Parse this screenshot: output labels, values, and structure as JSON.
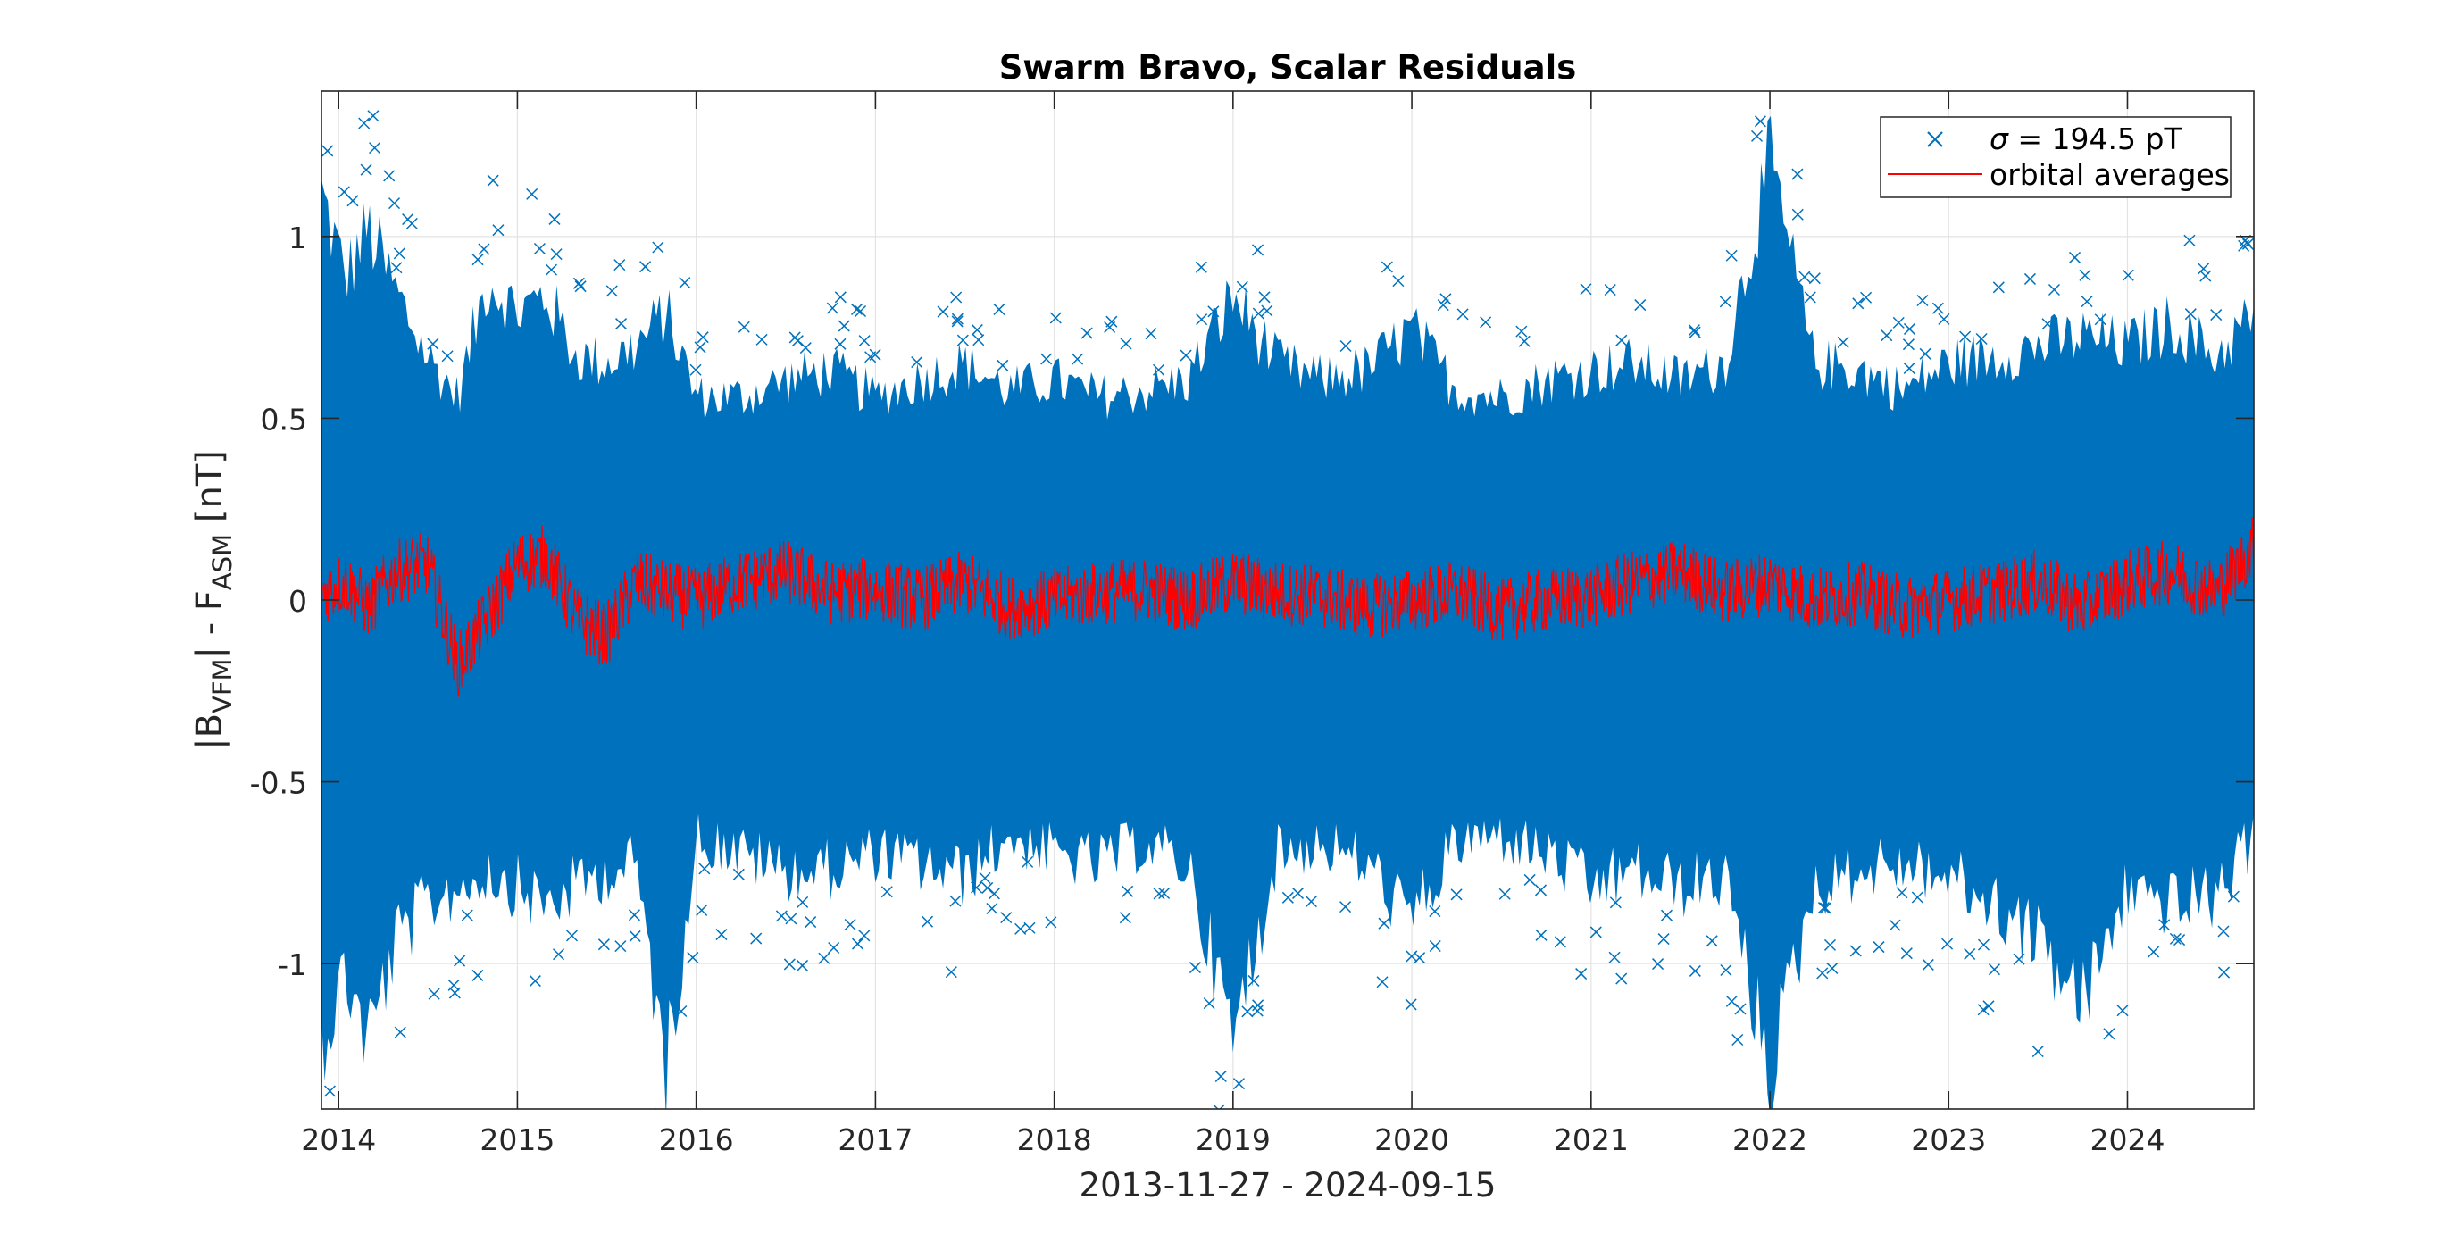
{
  "chart_data": {
    "type": "scatter",
    "title": "Swarm Bravo, Scalar Residuals",
    "xlabel": "2013-11-27 - 2024-09-15",
    "ylabel": {
      "prefix": "|B",
      "sub1": "VFM",
      "middle": "| - F",
      "sub2": "ASM",
      "suffix": " [nT]"
    },
    "xlim": [
      "2013-11-27",
      "2024-09-15"
    ],
    "ylim": [
      -1.4,
      1.4
    ],
    "yticks": [
      -1,
      -0.5,
      0,
      0.5,
      1
    ],
    "ytick_labels": [
      "-1",
      "-0.5",
      "0",
      "0.5",
      "1"
    ],
    "xticks": [
      "2014-01-01",
      "2015-01-01",
      "2016-01-01",
      "2017-01-01",
      "2018-01-01",
      "2019-01-01",
      "2020-01-01",
      "2021-01-01",
      "2022-01-01",
      "2023-01-01",
      "2024-01-01"
    ],
    "xtick_labels": [
      "2014",
      "2015",
      "2016",
      "2017",
      "2018",
      "2019",
      "2020",
      "2021",
      "2022",
      "2023",
      "2024"
    ],
    "grid": true,
    "legend_position": "top-right",
    "legend": [
      {
        "symbol": "σ",
        "label": " = 194.5 pT",
        "marker": "x",
        "color": "#0072BD"
      },
      {
        "label": "orbital averages",
        "marker": "line",
        "color": "#FF0000"
      }
    ],
    "series": [
      {
        "name": "σ = 194.5 pT",
        "kind": "residual-envelope",
        "color": "#0072BD",
        "x": [
          "2013-11-27",
          "2014-01-15",
          "2014-03-01",
          "2014-05-01",
          "2014-07-01",
          "2014-09-01",
          "2014-11-01",
          "2015-01-01",
          "2015-03-01",
          "2015-05-01",
          "2015-07-01",
          "2015-09-01",
          "2015-11-01",
          "2016-01-01",
          "2016-04-01",
          "2016-07-01",
          "2016-10-01",
          "2017-01-01",
          "2017-04-01",
          "2017-07-01",
          "2017-10-01",
          "2018-01-01",
          "2018-04-01",
          "2018-07-01",
          "2018-10-01",
          "2019-01-01",
          "2019-04-01",
          "2019-07-01",
          "2019-10-01",
          "2020-01-01",
          "2020-04-01",
          "2020-07-01",
          "2020-10-01",
          "2021-01-01",
          "2021-04-01",
          "2021-07-01",
          "2021-10-01",
          "2022-01-01",
          "2022-04-01",
          "2022-07-01",
          "2022-10-01",
          "2023-01-01",
          "2023-04-01",
          "2023-07-01",
          "2023-10-01",
          "2024-01-01",
          "2024-04-01",
          "2024-07-01",
          "2024-09-15"
        ],
        "upper": [
          1.2,
          0.95,
          1.1,
          0.9,
          0.72,
          0.6,
          0.95,
          0.85,
          0.9,
          0.72,
          0.7,
          0.75,
          0.85,
          0.6,
          0.6,
          0.65,
          0.68,
          0.6,
          0.65,
          0.7,
          0.62,
          0.65,
          0.6,
          0.62,
          0.65,
          0.9,
          0.7,
          0.65,
          0.68,
          0.8,
          0.62,
          0.6,
          0.65,
          0.68,
          0.7,
          0.65,
          0.7,
          1.3,
          0.7,
          0.68,
          0.62,
          0.7,
          0.72,
          0.75,
          0.78,
          0.75,
          0.82,
          0.72,
          0.85
        ],
        "lower": [
          -1.3,
          -1.1,
          -1.3,
          -1.0,
          -0.9,
          -0.85,
          -0.8,
          -0.85,
          -0.9,
          -0.85,
          -0.8,
          -0.78,
          -1.4,
          -0.7,
          -0.75,
          -0.8,
          -0.8,
          -0.75,
          -0.78,
          -0.82,
          -0.7,
          -0.75,
          -0.78,
          -0.72,
          -0.78,
          -1.3,
          -0.75,
          -0.72,
          -0.78,
          -0.95,
          -0.72,
          -0.7,
          -0.75,
          -0.85,
          -0.8,
          -0.85,
          -0.82,
          -1.4,
          -0.85,
          -0.8,
          -0.78,
          -0.82,
          -0.9,
          -1.0,
          -1.2,
          -0.85,
          -0.9,
          -0.88,
          -0.7
        ]
      },
      {
        "name": "orbital averages",
        "kind": "line",
        "color": "#FF0000",
        "x": [
          "2013-11-27",
          "2014-01-15",
          "2014-03-01",
          "2014-05-01",
          "2014-07-01",
          "2014-09-01",
          "2014-11-01",
          "2015-01-01",
          "2015-03-01",
          "2015-05-01",
          "2015-07-01",
          "2015-09-01",
          "2015-11-01",
          "2016-01-01",
          "2016-04-01",
          "2016-07-01",
          "2016-10-01",
          "2017-01-01",
          "2017-04-01",
          "2017-07-01",
          "2017-10-01",
          "2018-01-01",
          "2018-04-01",
          "2018-07-01",
          "2018-10-01",
          "2019-01-01",
          "2019-04-01",
          "2019-07-01",
          "2019-10-01",
          "2020-01-01",
          "2020-04-01",
          "2020-07-01",
          "2020-10-01",
          "2021-01-01",
          "2021-04-01",
          "2021-07-01",
          "2021-10-01",
          "2022-01-01",
          "2022-04-01",
          "2022-07-01",
          "2022-10-01",
          "2023-01-01",
          "2023-04-01",
          "2023-07-01",
          "2023-10-01",
          "2024-01-01",
          "2024-04-01",
          "2024-07-01",
          "2024-09-15"
        ],
        "y": [
          0.02,
          0.05,
          -0.02,
          0.08,
          0.1,
          -0.18,
          -0.05,
          0.1,
          0.12,
          -0.05,
          -0.1,
          0.05,
          0.02,
          0.0,
          0.05,
          0.08,
          0.02,
          0.03,
          0.0,
          0.05,
          -0.02,
          0.0,
          0.02,
          0.03,
          0.0,
          0.05,
          0.02,
          0.01,
          -0.02,
          0.0,
          0.02,
          -0.03,
          0.0,
          0.01,
          0.05,
          0.08,
          0.02,
          0.05,
          0.0,
          0.02,
          -0.02,
          0.0,
          0.02,
          0.05,
          -0.02,
          0.05,
          0.08,
          0.02,
          0.15
        ],
        "spread": 0.09
      }
    ]
  }
}
